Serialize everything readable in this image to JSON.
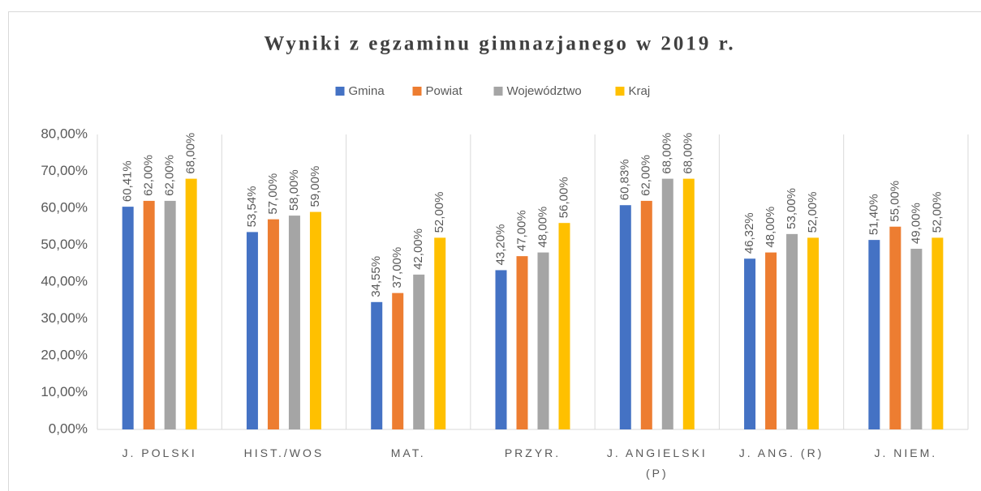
{
  "chart_data": {
    "type": "bar",
    "title": "Wyniki z egzaminu gimnazjanego w 2019 r.",
    "categories": [
      "J. POLSKI",
      "HIST./WOS",
      "MAT.",
      "PRZYR.",
      "J. ANGIELSKI (P)",
      "J. ANG. (R)",
      "J. NIEM."
    ],
    "series": [
      {
        "name": "Gmina",
        "color": "#4472c4",
        "values": [
          60.41,
          53.54,
          34.55,
          43.2,
          60.83,
          46.32,
          51.4
        ],
        "value_labels": [
          "60,41%",
          "53,54%",
          "34,55%",
          "43,20%",
          "60,83%",
          "46,32%",
          "51,40%"
        ]
      },
      {
        "name": "Powiat",
        "color": "#ed7d31",
        "values": [
          62,
          57,
          37,
          47,
          62,
          48,
          55
        ],
        "value_labels": [
          "62,00%",
          "57,00%",
          "37,00%",
          "47,00%",
          "62,00%",
          "48,00%",
          "55,00%"
        ]
      },
      {
        "name": "Województwo",
        "color": "#a5a5a5",
        "values": [
          62,
          58,
          42,
          48,
          68,
          53,
          49
        ],
        "value_labels": [
          "62,00%",
          "58,00%",
          "42,00%",
          "48,00%",
          "68,00%",
          "53,00%",
          "49,00%"
        ]
      },
      {
        "name": "Kraj",
        "color": "#ffc000",
        "values": [
          68,
          59,
          52,
          56,
          68,
          52,
          52
        ],
        "value_labels": [
          "68,00%",
          "59,00%",
          "52,00%",
          "56,00%",
          "68,00%",
          "52,00%",
          "52,00%"
        ]
      }
    ],
    "ylim": [
      0,
      80
    ],
    "yticks": [
      {
        "value": 0,
        "label": "0,00%"
      },
      {
        "value": 10,
        "label": "10,00%"
      },
      {
        "value": 20,
        "label": "20,00%"
      },
      {
        "value": 30,
        "label": "30,00%"
      },
      {
        "value": 40,
        "label": "40,00%"
      },
      {
        "value": 50,
        "label": "50,00%"
      },
      {
        "value": 60,
        "label": "60,00%"
      },
      {
        "value": 70,
        "label": "70,00%"
      },
      {
        "value": 80,
        "label": "80,00%"
      }
    ],
    "legend": "top"
  }
}
